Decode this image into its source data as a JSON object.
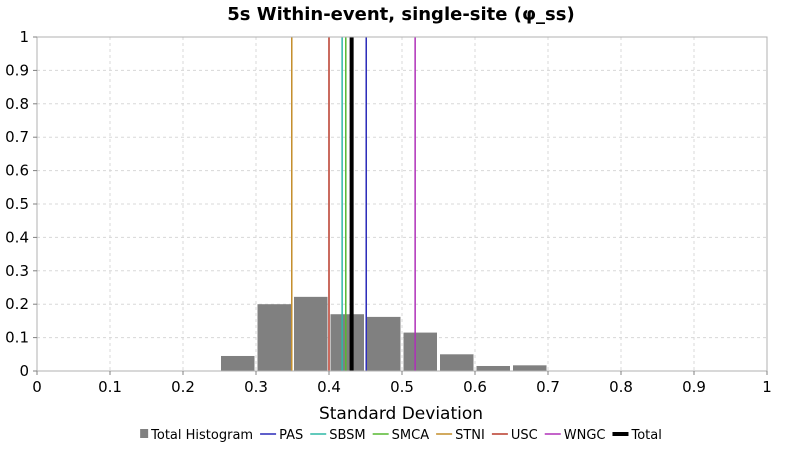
{
  "chart_data": {
    "type": "bar",
    "title": "5s Within-event, single-site (φ_ss)",
    "xlabel": "Standard Deviation",
    "ylabel": "",
    "xlim": [
      0,
      1
    ],
    "ylim": [
      0,
      1
    ],
    "xticks": [
      "0",
      "0.1",
      "0.2",
      "0.3",
      "0.4",
      "0.5",
      "0.6",
      "0.7",
      "0.8",
      "0.9",
      "1"
    ],
    "yticks": [
      "0",
      "0.1",
      "0.2",
      "0.3",
      "0.4",
      "0.5",
      "0.6",
      "0.7",
      "0.8",
      "0.9",
      "1"
    ],
    "grid": true,
    "legend_position": "bottom",
    "histogram": {
      "name": "Total Histogram",
      "color": "#808080",
      "bin_width": 0.05,
      "bin_centers": [
        0.275,
        0.325,
        0.375,
        0.425,
        0.475,
        0.525,
        0.575,
        0.625,
        0.675
      ],
      "values": [
        0.045,
        0.2,
        0.222,
        0.17,
        0.162,
        0.115,
        0.05,
        0.015,
        0.017
      ]
    },
    "lines": [
      {
        "name": "PAS",
        "x": 0.451,
        "color": "#2a2ab8",
        "width": 1.5
      },
      {
        "name": "SBSM",
        "x": 0.418,
        "color": "#2fb8a6",
        "width": 1.5
      },
      {
        "name": "SMCA",
        "x": 0.423,
        "color": "#56b830",
        "width": 1.5
      },
      {
        "name": "STNI",
        "x": 0.349,
        "color": "#c48d2a",
        "width": 1.5
      },
      {
        "name": "USC",
        "x": 0.4,
        "color": "#b83a2a",
        "width": 1.5
      },
      {
        "name": "WNGC",
        "x": 0.518,
        "color": "#b030b8",
        "width": 1.5
      },
      {
        "name": "Total",
        "x": 0.431,
        "color": "#000000",
        "width": 4
      }
    ]
  }
}
